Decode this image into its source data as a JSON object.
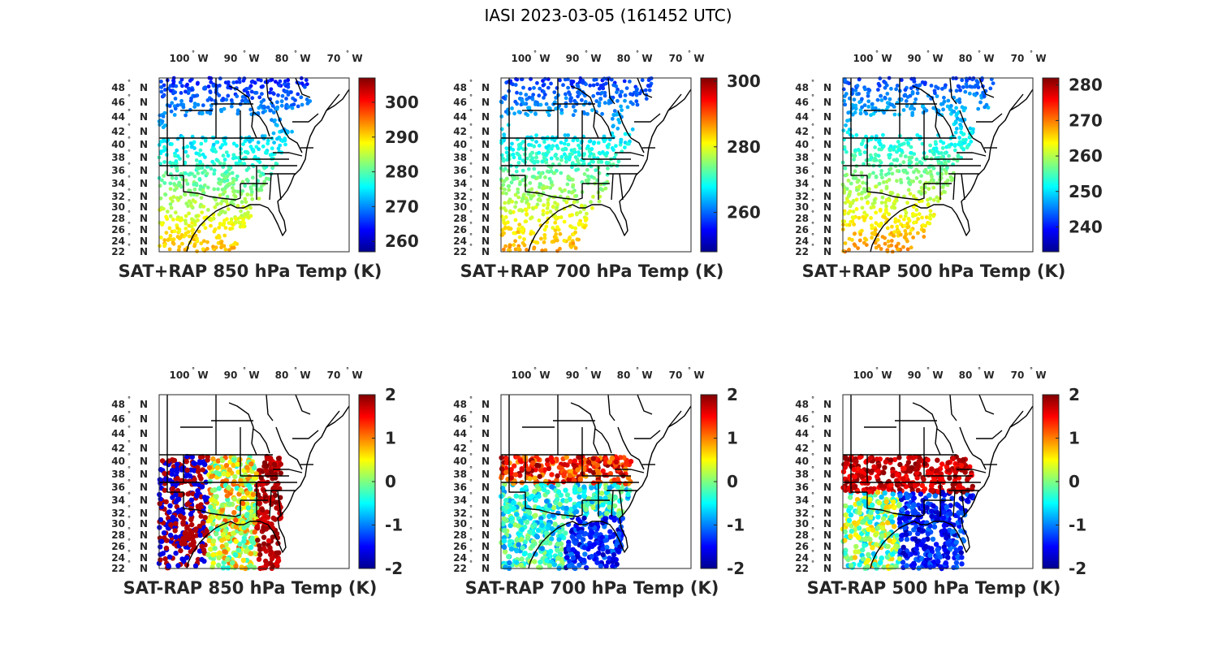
{
  "figure_title": "IASI 2023-03-05 (161452 UTC)",
  "colors": {
    "background": "#ffffff",
    "text": "#262626",
    "map_lines": "#000000"
  },
  "chart_data": [
    {
      "type": "heatmap",
      "title": "SAT+RAP 850 hPa Temp (K)",
      "xticks": [
        "100",
        "90",
        "80",
        "70"
      ],
      "xhem": "W",
      "yticks": [
        "48",
        "46",
        "44",
        "42",
        "40",
        "38",
        "36",
        "34",
        "32",
        "30",
        "28",
        "26",
        "24",
        "22"
      ],
      "yhem": "N",
      "colorbar": {
        "ticks": [
          "300",
          "290",
          "280",
          "270",
          "260"
        ],
        "range": [
          257,
          307
        ],
        "colormap": "jet"
      },
      "field": "total"
    },
    {
      "type": "heatmap",
      "title": "SAT+RAP 700 hPa Temp (K)",
      "xticks": [
        "100",
        "90",
        "80",
        "70"
      ],
      "xhem": "W",
      "yticks": [
        "48",
        "46",
        "44",
        "42",
        "40",
        "38",
        "36",
        "34",
        "32",
        "30",
        "28",
        "26",
        "24",
        "22"
      ],
      "yhem": "N",
      "colorbar": {
        "ticks": [
          "300",
          "280",
          "260"
        ],
        "range": [
          248,
          301
        ],
        "colormap": "jet"
      },
      "field": "total"
    },
    {
      "type": "heatmap",
      "title": "SAT+RAP 500 hPa Temp (K)",
      "xticks": [
        "100",
        "90",
        "80",
        "70"
      ],
      "xhem": "W",
      "yticks": [
        "48",
        "46",
        "44",
        "42",
        "40",
        "38",
        "36",
        "34",
        "32",
        "30",
        "28",
        "26",
        "24",
        "22"
      ],
      "yhem": "N",
      "colorbar": {
        "ticks": [
          "280",
          "270",
          "260",
          "250",
          "240"
        ],
        "range": [
          233,
          282
        ],
        "colormap": "jet"
      },
      "field": "total"
    },
    {
      "type": "heatmap",
      "title": "SAT-RAP 850 hPa Temp (K)",
      "xticks": [
        "100",
        "90",
        "80",
        "70"
      ],
      "xhem": "W",
      "yticks": [
        "48",
        "46",
        "44",
        "42",
        "40",
        "38",
        "36",
        "34",
        "32",
        "30",
        "28",
        "26",
        "24",
        "22"
      ],
      "yhem": "N",
      "colorbar": {
        "ticks": [
          "2",
          "1",
          "0",
          "-1",
          "-2"
        ],
        "range": [
          -2,
          2
        ],
        "colormap": "jet"
      },
      "field": "diff"
    },
    {
      "type": "heatmap",
      "title": "SAT-RAP 700 hPa Temp (K)",
      "xticks": [
        "100",
        "90",
        "80",
        "70"
      ],
      "xhem": "W",
      "yticks": [
        "48",
        "46",
        "44",
        "42",
        "40",
        "38",
        "36",
        "34",
        "32",
        "30",
        "28",
        "26",
        "24",
        "22"
      ],
      "yhem": "N",
      "colorbar": {
        "ticks": [
          "2",
          "1",
          "0",
          "-1",
          "-2"
        ],
        "range": [
          -2,
          2
        ],
        "colormap": "jet"
      },
      "field": "diff"
    },
    {
      "type": "heatmap",
      "title": "SAT-RAP 500 hPa Temp (K)",
      "xticks": [
        "100",
        "90",
        "80",
        "70"
      ],
      "xhem": "W",
      "yticks": [
        "48",
        "46",
        "44",
        "42",
        "40",
        "38",
        "36",
        "34",
        "32",
        "30",
        "28",
        "26",
        "24",
        "22"
      ],
      "yhem": "N",
      "colorbar": {
        "ticks": [
          "2",
          "1",
          "0",
          "-1",
          "-2"
        ],
        "range": [
          -2,
          2
        ],
        "colormap": "jet"
      },
      "field": "diff"
    }
  ]
}
